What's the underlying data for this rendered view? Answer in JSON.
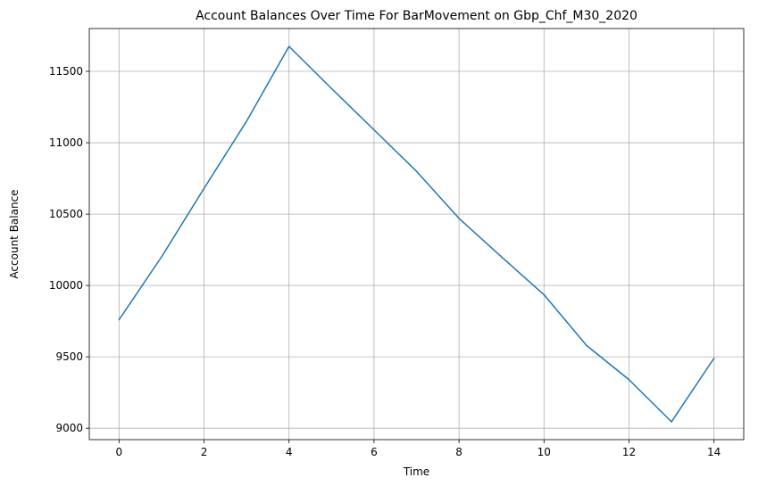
{
  "chart_data": {
    "type": "line",
    "title": "Account Balances Over Time For BarMovement on Gbp_Chf_M30_2020",
    "xlabel": "Time",
    "ylabel": "Account Balance",
    "xlim": [
      -0.7,
      14.7
    ],
    "ylim": [
      8920,
      11800
    ],
    "xticks": [
      0,
      2,
      4,
      6,
      8,
      10,
      12,
      14
    ],
    "yticks": [
      9000,
      9500,
      10000,
      10500,
      11000,
      11500
    ],
    "grid": true,
    "legend": "none",
    "series": [
      {
        "color": "#1f77b4",
        "x": [
          0,
          1,
          2,
          3,
          4,
          5,
          6,
          7,
          8,
          9,
          10,
          11,
          12,
          13,
          14
        ],
        "values": [
          9760,
          10200,
          10680,
          11150,
          11675,
          11380,
          11090,
          10800,
          10470,
          10200,
          9935,
          9580,
          9340,
          9045,
          9490
        ]
      }
    ]
  }
}
